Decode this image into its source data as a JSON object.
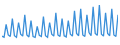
{
  "chart_data": {
    "type": "line",
    "color": "#3a8fd9",
    "tick_labels": false,
    "grid": false,
    "categories": [
      null,
      null,
      null,
      null,
      null,
      null,
      null,
      null,
      null,
      null,
      null,
      null,
      null,
      null,
      null,
      null,
      null,
      null,
      null,
      null,
      null,
      null,
      null,
      null,
      null,
      null,
      null,
      null,
      null,
      null,
      null,
      null,
      null,
      null,
      null,
      null,
      null,
      null,
      null,
      null,
      null,
      null,
      null,
      null,
      null,
      null,
      null,
      null,
      null,
      null,
      null,
      null,
      null,
      null,
      null,
      null,
      null
    ],
    "values": [
      15,
      12,
      45,
      18,
      14,
      60,
      16,
      12,
      50,
      20,
      15,
      70,
      18,
      13,
      55,
      14,
      12,
      40,
      17,
      14,
      65,
      16,
      12,
      50,
      20,
      15,
      75,
      18,
      14,
      60,
      16,
      13,
      55,
      20,
      15,
      80,
      22,
      16,
      85,
      18,
      14,
      70,
      24,
      16,
      90,
      22,
      17,
      95,
      20,
      15,
      75,
      22,
      16,
      85,
      18,
      14,
      70
    ],
    "ylim": [
      0,
      100
    ]
  }
}
